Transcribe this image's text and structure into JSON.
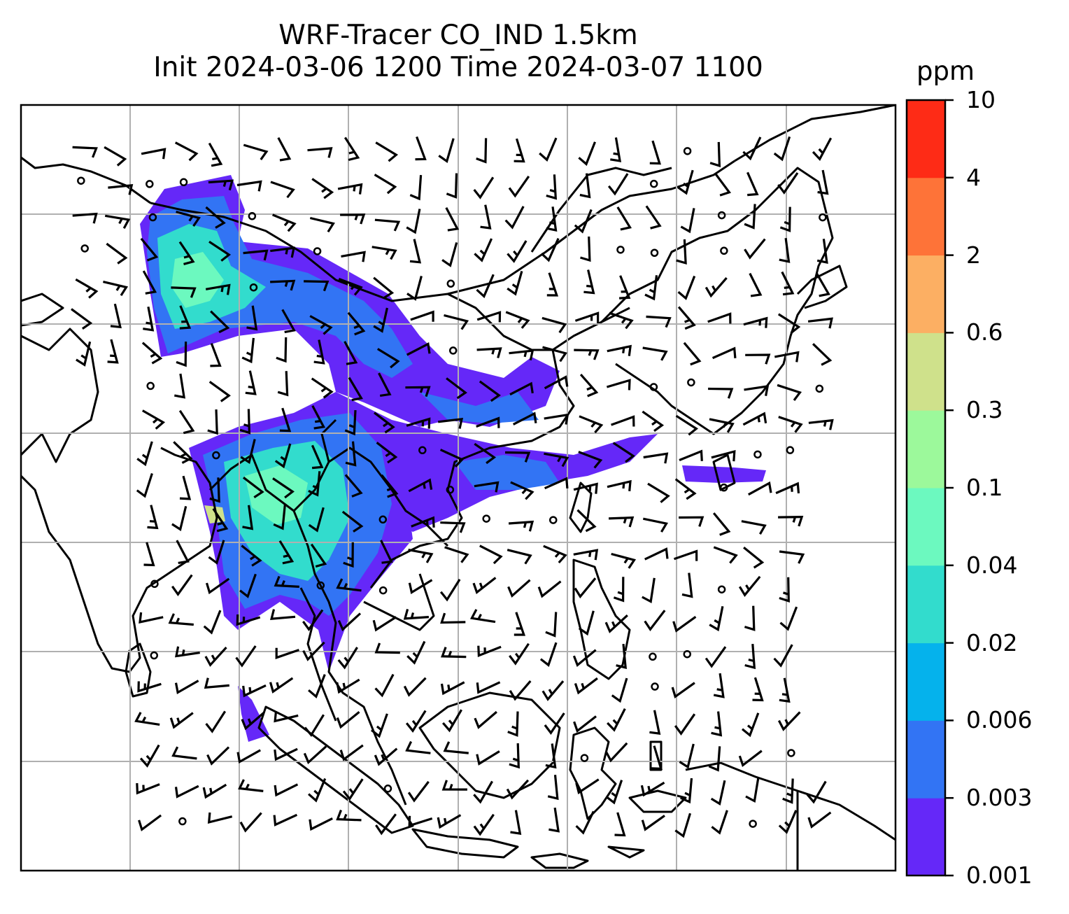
{
  "title": {
    "line1": "WRF-Tracer CO_IND 1.5km",
    "line2": "Init 2024-03-06 1200 Time 2024-03-07 1100"
  },
  "colorbar": {
    "unit": "ppm",
    "levels": [
      "0.001",
      "0.003",
      "0.006",
      "0.02",
      "0.04",
      "0.1",
      "0.3",
      "0.6",
      "2",
      "4",
      "10"
    ],
    "colors": [
      "#6528f8",
      "#3274f4",
      "#05b2ec",
      "#32dccd",
      "#6cf9bf",
      "#9cf99b",
      "#cfe18b",
      "#fcaf63",
      "#fe7338",
      "#fe2b16"
    ]
  },
  "map": {
    "gridlines": true,
    "features": [
      "coastlines",
      "country-borders",
      "wind-barbs",
      "calm-circles"
    ]
  }
}
